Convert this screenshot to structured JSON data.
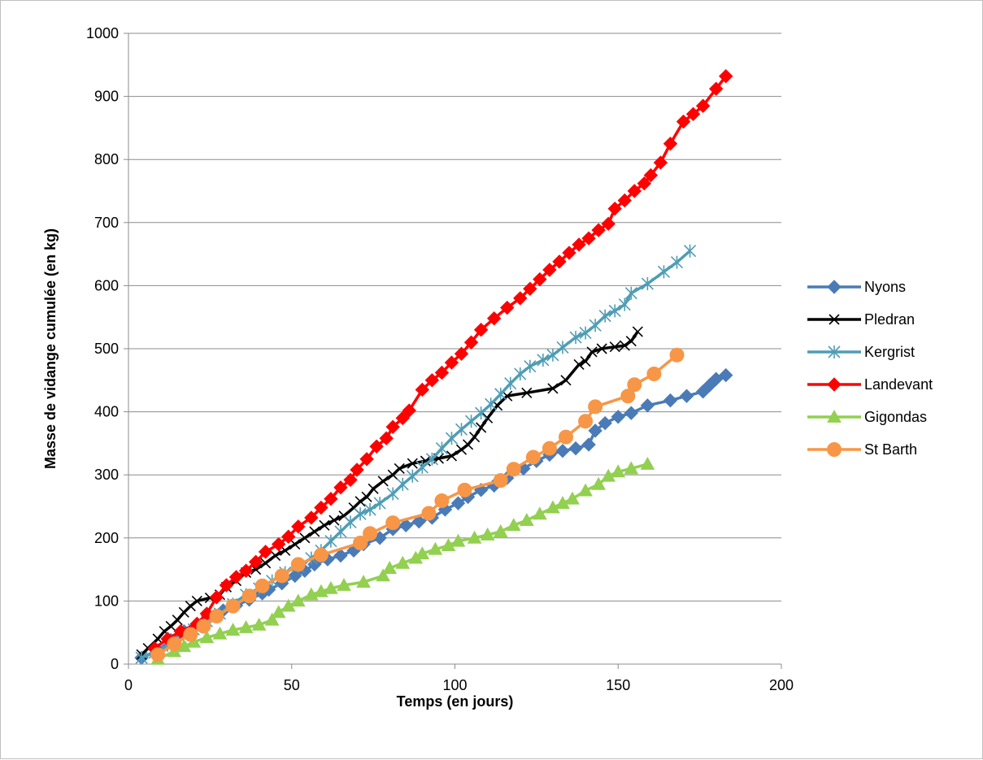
{
  "chart_data": {
    "type": "line",
    "title": "",
    "xlabel": "Temps (en jours)",
    "ylabel": "Masse de vidange cumulée (en kg)",
    "xlim": [
      0,
      200
    ],
    "ylim": [
      0,
      1000
    ],
    "xticks": [
      0,
      50,
      100,
      150,
      200
    ],
    "yticks": [
      0,
      100,
      200,
      300,
      400,
      500,
      600,
      700,
      800,
      900,
      1000
    ],
    "grid": "horizontal",
    "legend_position": "right",
    "series": [
      {
        "name": "Nyons",
        "color": "#4a7bb7",
        "marker": "diamond",
        "points": [
          [
            4,
            10
          ],
          [
            9,
            22
          ],
          [
            13,
            38
          ],
          [
            17,
            52
          ],
          [
            21,
            63
          ],
          [
            25,
            75
          ],
          [
            29,
            85
          ],
          [
            33,
            93
          ],
          [
            37,
            102
          ],
          [
            41,
            112
          ],
          [
            43,
            118
          ],
          [
            47,
            128
          ],
          [
            51,
            140
          ],
          [
            54,
            148
          ],
          [
            57,
            158
          ],
          [
            61,
            166
          ],
          [
            65,
            172
          ],
          [
            69,
            180
          ],
          [
            72,
            190
          ],
          [
            77,
            200
          ],
          [
            81,
            214
          ],
          [
            85,
            220
          ],
          [
            89,
            226
          ],
          [
            93,
            232
          ],
          [
            97,
            245
          ],
          [
            101,
            255
          ],
          [
            104,
            265
          ],
          [
            108,
            276
          ],
          [
            112,
            283
          ],
          [
            116,
            295
          ],
          [
            121,
            310
          ],
          [
            125,
            322
          ],
          [
            129,
            332
          ],
          [
            133,
            338
          ],
          [
            137,
            342
          ],
          [
            141,
            348
          ],
          [
            143,
            370
          ],
          [
            146,
            382
          ],
          [
            150,
            392
          ],
          [
            154,
            398
          ],
          [
            159,
            410
          ],
          [
            166,
            418
          ],
          [
            171,
            425
          ],
          [
            176,
            432
          ],
          [
            178,
            442
          ],
          [
            180,
            452
          ],
          [
            183,
            458
          ]
        ]
      },
      {
        "name": "Pledran",
        "color": "#000000",
        "marker": "x",
        "points": [
          [
            4,
            15
          ],
          [
            6,
            25
          ],
          [
            9,
            40
          ],
          [
            11,
            52
          ],
          [
            13,
            60
          ],
          [
            15,
            70
          ],
          [
            17,
            82
          ],
          [
            19,
            92
          ],
          [
            21,
            100
          ],
          [
            25,
            105
          ],
          [
            28,
            110
          ],
          [
            30,
            122
          ],
          [
            33,
            132
          ],
          [
            36,
            145
          ],
          [
            39,
            150
          ],
          [
            42,
            160
          ],
          [
            45,
            172
          ],
          [
            48,
            180
          ],
          [
            51,
            190
          ],
          [
            54,
            200
          ],
          [
            57,
            210
          ],
          [
            60,
            220
          ],
          [
            63,
            228
          ],
          [
            66,
            235
          ],
          [
            69,
            248
          ],
          [
            71,
            258
          ],
          [
            73,
            265
          ],
          [
            75,
            278
          ],
          [
            78,
            290
          ],
          [
            81,
            300
          ],
          [
            83,
            310
          ],
          [
            87,
            318
          ],
          [
            91,
            322
          ],
          [
            95,
            326
          ],
          [
            99,
            330
          ],
          [
            102,
            340
          ],
          [
            104,
            348
          ],
          [
            106,
            360
          ],
          [
            108,
            375
          ],
          [
            110,
            390
          ],
          [
            113,
            410
          ],
          [
            116,
            425
          ],
          [
            122,
            430
          ],
          [
            130,
            437
          ],
          [
            134,
            450
          ],
          [
            138,
            475
          ],
          [
            140,
            480
          ],
          [
            142,
            495
          ],
          [
            145,
            500
          ],
          [
            149,
            503
          ],
          [
            152,
            505
          ],
          [
            154,
            512
          ],
          [
            156,
            527
          ]
        ]
      },
      {
        "name": "Kergrist",
        "color": "#4f9db5",
        "marker": "asterisk",
        "points": [
          [
            4,
            10
          ],
          [
            8,
            18
          ],
          [
            12,
            30
          ],
          [
            16,
            42
          ],
          [
            20,
            55
          ],
          [
            24,
            68
          ],
          [
            28,
            80
          ],
          [
            32,
            95
          ],
          [
            36,
            110
          ],
          [
            40,
            120
          ],
          [
            44,
            132
          ],
          [
            48,
            145
          ],
          [
            52,
            155
          ],
          [
            56,
            168
          ],
          [
            59,
            180
          ],
          [
            62,
            195
          ],
          [
            65,
            210
          ],
          [
            68,
            225
          ],
          [
            71,
            238
          ],
          [
            74,
            245
          ],
          [
            77,
            255
          ],
          [
            81,
            270
          ],
          [
            84,
            285
          ],
          [
            87,
            298
          ],
          [
            90,
            312
          ],
          [
            93,
            325
          ],
          [
            96,
            342
          ],
          [
            99,
            358
          ],
          [
            102,
            372
          ],
          [
            105,
            385
          ],
          [
            108,
            398
          ],
          [
            111,
            412
          ],
          [
            114,
            428
          ],
          [
            117,
            445
          ],
          [
            120,
            460
          ],
          [
            123,
            472
          ],
          [
            127,
            482
          ],
          [
            130,
            490
          ],
          [
            133,
            502
          ],
          [
            137,
            518
          ],
          [
            140,
            525
          ],
          [
            143,
            537
          ],
          [
            146,
            552
          ],
          [
            149,
            560
          ],
          [
            152,
            570
          ],
          [
            154,
            588
          ],
          [
            159,
            603
          ],
          [
            164,
            622
          ],
          [
            168,
            637
          ],
          [
            172,
            655
          ]
        ]
      },
      {
        "name": "Landevant",
        "color": "#ff0000",
        "marker": "diamond",
        "points": [
          [
            8,
            25
          ],
          [
            12,
            40
          ],
          [
            16,
            52
          ],
          [
            21,
            64
          ],
          [
            24,
            80
          ],
          [
            27,
            106
          ],
          [
            30,
            125
          ],
          [
            33,
            138
          ],
          [
            36,
            148
          ],
          [
            39,
            162
          ],
          [
            42,
            178
          ],
          [
            46,
            190
          ],
          [
            49,
            202
          ],
          [
            52,
            218
          ],
          [
            56,
            232
          ],
          [
            59,
            248
          ],
          [
            62,
            262
          ],
          [
            65,
            280
          ],
          [
            68,
            292
          ],
          [
            70,
            308
          ],
          [
            73,
            325
          ],
          [
            76,
            345
          ],
          [
            79,
            358
          ],
          [
            81,
            376
          ],
          [
            84,
            390
          ],
          [
            86,
            402
          ],
          [
            90,
            435
          ],
          [
            93,
            450
          ],
          [
            96,
            462
          ],
          [
            99,
            478
          ],
          [
            102,
            492
          ],
          [
            105,
            510
          ],
          [
            108,
            530
          ],
          [
            112,
            548
          ],
          [
            116,
            565
          ],
          [
            120,
            580
          ],
          [
            123,
            595
          ],
          [
            126,
            610
          ],
          [
            129,
            625
          ],
          [
            132,
            638
          ],
          [
            135,
            652
          ],
          [
            138,
            665
          ],
          [
            141,
            675
          ],
          [
            144,
            688
          ],
          [
            147,
            698
          ],
          [
            149,
            722
          ],
          [
            152,
            735
          ],
          [
            155,
            750
          ],
          [
            158,
            762
          ],
          [
            160,
            775
          ],
          [
            163,
            795
          ],
          [
            166,
            825
          ],
          [
            170,
            860
          ],
          [
            173,
            872
          ],
          [
            176,
            885
          ],
          [
            180,
            912
          ],
          [
            183,
            932
          ]
        ]
      },
      {
        "name": "Gigondas",
        "color": "#92d050",
        "marker": "triangle",
        "points": [
          [
            9,
            8
          ],
          [
            14,
            20
          ],
          [
            17,
            28
          ],
          [
            20,
            35
          ],
          [
            24,
            42
          ],
          [
            28,
            48
          ],
          [
            32,
            54
          ],
          [
            36,
            58
          ],
          [
            40,
            62
          ],
          [
            44,
            70
          ],
          [
            46,
            82
          ],
          [
            49,
            92
          ],
          [
            52,
            100
          ],
          [
            56,
            110
          ],
          [
            59,
            115
          ],
          [
            62,
            120
          ],
          [
            66,
            125
          ],
          [
            72,
            130
          ],
          [
            78,
            140
          ],
          [
            80,
            152
          ],
          [
            84,
            160
          ],
          [
            88,
            168
          ],
          [
            90,
            175
          ],
          [
            94,
            182
          ],
          [
            98,
            188
          ],
          [
            101,
            195
          ],
          [
            106,
            200
          ],
          [
            110,
            205
          ],
          [
            114,
            210
          ],
          [
            118,
            220
          ],
          [
            122,
            228
          ],
          [
            126,
            238
          ],
          [
            130,
            248
          ],
          [
            133,
            255
          ],
          [
            136,
            262
          ],
          [
            140,
            275
          ],
          [
            144,
            285
          ],
          [
            147,
            298
          ],
          [
            150,
            305
          ],
          [
            154,
            310
          ],
          [
            159,
            317
          ]
        ]
      },
      {
        "name": "St Barth",
        "color": "#f79646",
        "marker": "circle",
        "points": [
          [
            9,
            15
          ],
          [
            14,
            32
          ],
          [
            19,
            47
          ],
          [
            23,
            60
          ],
          [
            27,
            76
          ],
          [
            32,
            92
          ],
          [
            37,
            108
          ],
          [
            41,
            124
          ],
          [
            47,
            140
          ],
          [
            52,
            158
          ],
          [
            59,
            173
          ],
          [
            71,
            192
          ],
          [
            74,
            207
          ],
          [
            81,
            224
          ],
          [
            92,
            239
          ],
          [
            96,
            259
          ],
          [
            103,
            276
          ],
          [
            114,
            291
          ],
          [
            118,
            309
          ],
          [
            124,
            328
          ],
          [
            129,
            342
          ],
          [
            134,
            360
          ],
          [
            140,
            385
          ],
          [
            143,
            408
          ],
          [
            153,
            425
          ],
          [
            155,
            443
          ],
          [
            161,
            460
          ],
          [
            168,
            490
          ]
        ]
      }
    ]
  }
}
